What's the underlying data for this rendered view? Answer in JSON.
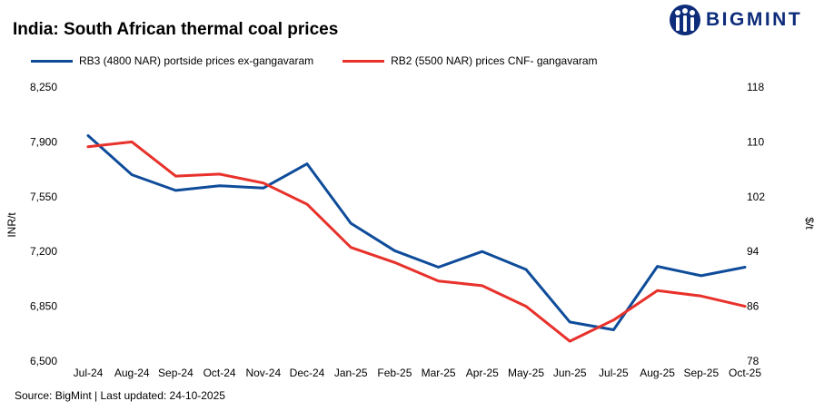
{
  "title": "India: South African thermal coal prices",
  "brand": {
    "name": "BIGMINT",
    "color": "#0d2c7a"
  },
  "source": "Source: BigMint | Last updated: 24-10-2025",
  "chart_data": {
    "type": "line",
    "categories": [
      "Jul-24",
      "Aug-24",
      "Sep-24",
      "Oct-24",
      "Nov-24",
      "Dec-24",
      "Jan-25",
      "Feb-25",
      "Mar-25",
      "Apr-25",
      "May-25",
      "Jun-25",
      "Jul-25",
      "Aug-25",
      "Sep-25",
      "Oct-25"
    ],
    "series": [
      {
        "name": "RB3 (4800 NAR) portside prices ex-gangavaram",
        "axis": "left",
        "color": "#0e4c9a",
        "values": [
          7940,
          7690,
          7590,
          7620,
          7605,
          7760,
          7380,
          7205,
          7100,
          7200,
          7085,
          6750,
          6700,
          7105,
          7045,
          7100
        ]
      },
      {
        "name": "RB2 (5500 NAR) prices CNF- gangavaram",
        "axis": "right",
        "color": "#e8312b",
        "values": [
          109.3,
          110.0,
          105.0,
          105.3,
          104.0,
          100.9,
          94.6,
          92.4,
          89.7,
          89.0,
          86.0,
          80.9,
          84.0,
          88.3,
          87.5,
          86.0
        ]
      }
    ],
    "ylabel": "INR/t",
    "ylabel_right": "$/t",
    "ylim": [
      6500,
      8250
    ],
    "ylim_right": [
      78,
      118
    ],
    "yticks": [
      "6,500",
      "6,850",
      "7,200",
      "7,550",
      "7,900",
      "8,250"
    ],
    "yticks_right": [
      "78",
      "86",
      "94",
      "102",
      "110",
      "118"
    ],
    "grid": false,
    "legend": "top-left"
  }
}
